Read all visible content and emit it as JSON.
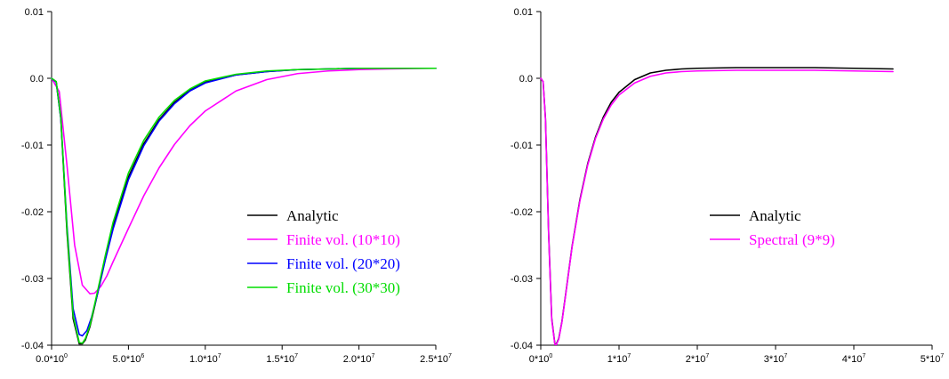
{
  "chart_data": [
    {
      "type": "line",
      "xlim": [
        0,
        25000000
      ],
      "ylim": [
        -0.04,
        0.01
      ],
      "x_ticks": [
        {
          "mant": "0.0*10",
          "exp": "0"
        },
        {
          "mant": "5.0*10",
          "exp": "6"
        },
        {
          "mant": "1.0*10",
          "exp": "7"
        },
        {
          "mant": "1.5*10",
          "exp": "7"
        },
        {
          "mant": "2.0*10",
          "exp": "7"
        },
        {
          "mant": "2.5*10",
          "exp": "7"
        }
      ],
      "y_ticks": [
        "0.01",
        "0.0",
        "-0.01",
        "-0.02",
        "-0.03",
        "-0.04"
      ],
      "legend_position": "lower-right",
      "series": [
        {
          "name": "Analytic",
          "color": "#000000",
          "x": [
            0,
            300000,
            600000,
            1000000,
            1400000,
            1800000,
            2000000,
            2200000,
            2500000,
            3000000,
            3500000,
            4000000,
            5000000,
            6000000,
            7000000,
            8000000,
            9000000,
            10000000,
            12000000,
            14000000,
            16000000,
            18000000,
            20000000,
            22000000,
            25000000
          ],
          "y": [
            0,
            -0.0005,
            -0.006,
            -0.023,
            -0.036,
            -0.0398,
            -0.0398,
            -0.0392,
            -0.0372,
            -0.0322,
            -0.027,
            -0.0222,
            -0.0148,
            -0.0098,
            -0.0062,
            -0.0036,
            -0.0018,
            -0.0006,
            0.0005,
            0.001,
            0.0013,
            0.0014,
            0.0015,
            0.0015,
            0.0015
          ]
        },
        {
          "name": "Finite vol. (10*10)",
          "color": "#ff00ff",
          "x": [
            0,
            500000,
            1000000,
            1500000,
            2000000,
            2500000,
            2800000,
            3200000,
            3600000,
            4000000,
            5000000,
            6000000,
            7000000,
            8000000,
            9000000,
            10000000,
            12000000,
            14000000,
            16000000,
            18000000,
            20000000,
            22000000,
            25000000
          ],
          "y": [
            0,
            -0.002,
            -0.013,
            -0.025,
            -0.031,
            -0.0323,
            -0.0322,
            -0.0312,
            -0.0296,
            -0.0275,
            -0.0225,
            -0.0176,
            -0.0134,
            -0.0099,
            -0.0071,
            -0.0049,
            -0.0019,
            -0.0002,
            0.0007,
            0.0011,
            0.0013,
            0.0014,
            0.0015
          ]
        },
        {
          "name": "Finite vol. (20*20)",
          "color": "#0000ff",
          "x": [
            0,
            300000,
            600000,
            1000000,
            1400000,
            1800000,
            2000000,
            2300000,
            2600000,
            3000000,
            3500000,
            4000000,
            5000000,
            6000000,
            7000000,
            8000000,
            9000000,
            10000000,
            12000000,
            14000000,
            16000000,
            18000000,
            20000000,
            22000000,
            25000000
          ],
          "y": [
            0,
            -0.0006,
            -0.006,
            -0.022,
            -0.0345,
            -0.0384,
            -0.0386,
            -0.0378,
            -0.0358,
            -0.0322,
            -0.0272,
            -0.0226,
            -0.0152,
            -0.0101,
            -0.0064,
            -0.0038,
            -0.0019,
            -0.0007,
            0.0005,
            0.001,
            0.0013,
            0.0014,
            0.0015,
            0.0015,
            0.0015
          ]
        },
        {
          "name": "Finite vol. (30*30)",
          "color": "#00dd00",
          "x": [
            0,
            300000,
            600000,
            1000000,
            1400000,
            1800000,
            2000000,
            2200000,
            2500000,
            3000000,
            3500000,
            4000000,
            5000000,
            6000000,
            7000000,
            8000000,
            9000000,
            10000000,
            12000000,
            14000000,
            16000000,
            18000000,
            20000000,
            22000000,
            25000000
          ],
          "y": [
            0,
            -0.0005,
            -0.0058,
            -0.0225,
            -0.0355,
            -0.0396,
            -0.0397,
            -0.039,
            -0.037,
            -0.0318,
            -0.0265,
            -0.0216,
            -0.0142,
            -0.0093,
            -0.0058,
            -0.0033,
            -0.0016,
            -0.0004,
            0.0006,
            0.0011,
            0.0013,
            0.0014,
            0.0015,
            0.0015,
            0.0015
          ]
        }
      ]
    },
    {
      "type": "line",
      "xlim": [
        0,
        50000000
      ],
      "ylim": [
        -0.04,
        0.01
      ],
      "x_ticks": [
        {
          "mant": "0*10",
          "exp": "0"
        },
        {
          "mant": "1*10",
          "exp": "7"
        },
        {
          "mant": "2*10",
          "exp": "7"
        },
        {
          "mant": "3*10",
          "exp": "7"
        },
        {
          "mant": "4*10",
          "exp": "7"
        },
        {
          "mant": "5*10",
          "exp": "7"
        }
      ],
      "y_ticks": [
        "0.01",
        "0.0",
        "-0.01",
        "-0.02",
        "-0.03",
        "-0.04"
      ],
      "legend_position": "lower-right",
      "series": [
        {
          "name": "Analytic",
          "color": "#000000",
          "x": [
            0,
            300000,
            600000,
            1000000,
            1400000,
            1800000,
            2000000,
            2300000,
            2700000,
            3200000,
            4000000,
            5000000,
            6000000,
            7000000,
            8000000,
            9000000,
            10000000,
            12000000,
            14000000,
            16000000,
            18000000,
            20000000,
            25000000,
            30000000,
            35000000,
            40000000,
            45000000
          ],
          "y": [
            0,
            -0.0005,
            -0.006,
            -0.023,
            -0.036,
            -0.0398,
            -0.0398,
            -0.039,
            -0.0365,
            -0.0322,
            -0.0252,
            -0.0182,
            -0.0128,
            -0.0088,
            -0.0058,
            -0.0036,
            -0.0021,
            -0.0002,
            0.0008,
            0.0012,
            0.0014,
            0.0015,
            0.0016,
            0.0016,
            0.0016,
            0.0015,
            0.0014
          ]
        },
        {
          "name": "Spectral (9*9)",
          "color": "#ff00ff",
          "x": [
            0,
            300000,
            600000,
            1000000,
            1400000,
            1800000,
            2000000,
            2300000,
            2700000,
            3200000,
            4000000,
            5000000,
            6000000,
            7000000,
            8000000,
            9000000,
            10000000,
            12000000,
            14000000,
            16000000,
            18000000,
            20000000,
            25000000,
            30000000,
            35000000,
            40000000,
            45000000
          ],
          "y": [
            0,
            -0.0005,
            -0.0062,
            -0.0233,
            -0.0362,
            -0.0399,
            -0.0399,
            -0.0391,
            -0.0366,
            -0.0323,
            -0.0253,
            -0.0184,
            -0.013,
            -0.009,
            -0.0061,
            -0.004,
            -0.0025,
            -0.0007,
            0.0003,
            0.0008,
            0.001,
            0.0011,
            0.0012,
            0.0012,
            0.0012,
            0.0011,
            0.001
          ]
        }
      ]
    }
  ]
}
